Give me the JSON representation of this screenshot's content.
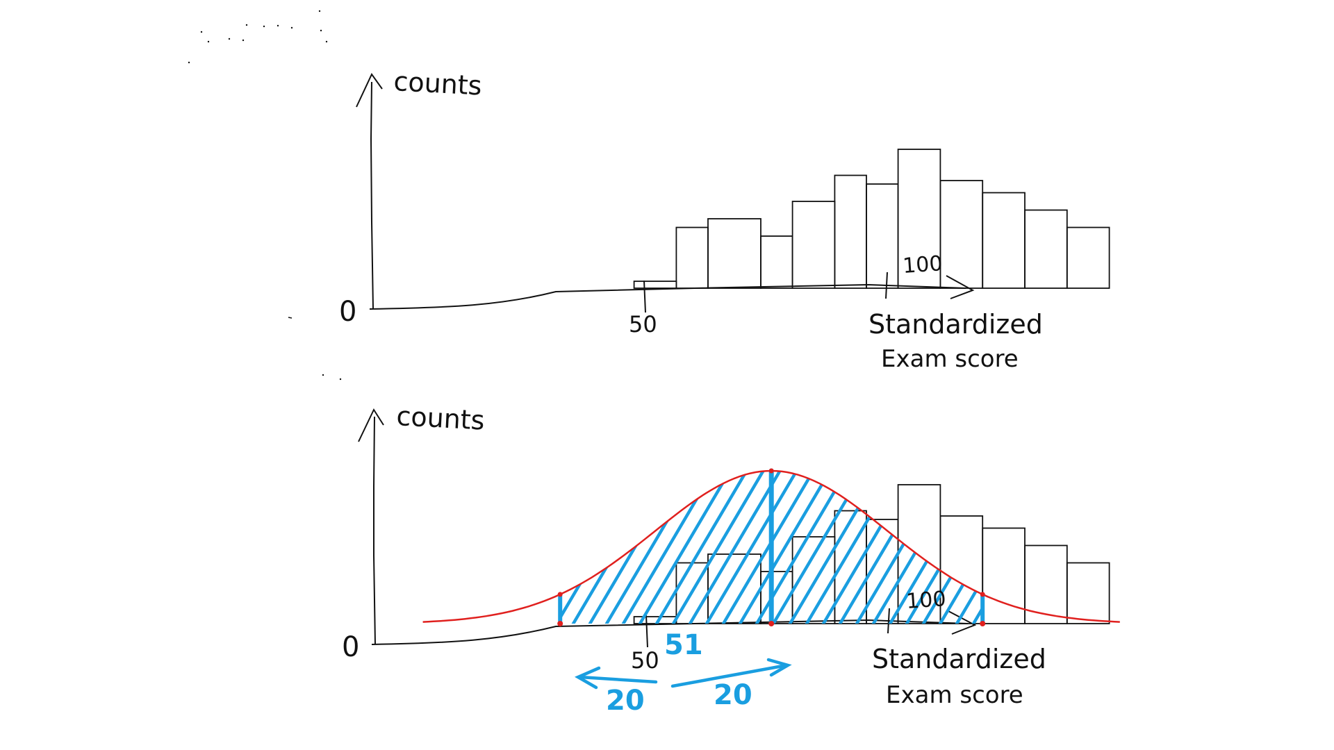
{
  "colors": {
    "ink": "#111111",
    "curve": "#e0201e",
    "highlight": "#1a9ee0",
    "background": "#ffffff"
  },
  "chart_data": [
    {
      "type": "bar",
      "ylabel": "counts",
      "xlabel": "Standardized Exam score",
      "xlabel_lines": [
        "Standardized",
        "Exam score"
      ],
      "origin_label": "0",
      "x_ticks": [
        {
          "x": 50,
          "label": "50"
        },
        {
          "x": 100,
          "label": "100"
        }
      ],
      "xlim": [
        0,
        100
      ],
      "bars": [
        {
          "x0": 38,
          "x1": 42,
          "y": 4
        },
        {
          "x0": 42,
          "x1": 45,
          "y": 35
        },
        {
          "x0": 45,
          "x1": 50,
          "y": 40
        },
        {
          "x0": 50,
          "x1": 53,
          "y": 30
        },
        {
          "x0": 53,
          "x1": 57,
          "y": 50
        },
        {
          "x0": 57,
          "x1": 60,
          "y": 65
        },
        {
          "x0": 60,
          "x1": 63,
          "y": 60
        },
        {
          "x0": 63,
          "x1": 67,
          "y": 80
        },
        {
          "x0": 67,
          "x1": 71,
          "y": 62
        },
        {
          "x0": 71,
          "x1": 75,
          "y": 55
        },
        {
          "x0": 75,
          "x1": 79,
          "y": 45
        },
        {
          "x0": 79,
          "x1": 83,
          "y": 35
        }
      ]
    },
    {
      "type": "bar",
      "ylabel": "counts",
      "xlabel": "Standardized Exam score",
      "xlabel_lines": [
        "Standardized",
        "Exam score"
      ],
      "origin_label": "0",
      "x_ticks": [
        {
          "x": 50,
          "label": "50"
        },
        {
          "x": 100,
          "label": "100"
        }
      ],
      "xlim": [
        0,
        100
      ],
      "bars": [
        {
          "x0": 38,
          "x1": 42,
          "y": 4
        },
        {
          "x0": 42,
          "x1": 45,
          "y": 35
        },
        {
          "x0": 45,
          "x1": 50,
          "y": 40
        },
        {
          "x0": 50,
          "x1": 53,
          "y": 30
        },
        {
          "x0": 53,
          "x1": 57,
          "y": 50
        },
        {
          "x0": 57,
          "x1": 60,
          "y": 65
        },
        {
          "x0": 60,
          "x1": 63,
          "y": 60
        },
        {
          "x0": 63,
          "x1": 67,
          "y": 80
        },
        {
          "x0": 67,
          "x1": 71,
          "y": 62
        },
        {
          "x0": 71,
          "x1": 75,
          "y": 55
        },
        {
          "x0": 75,
          "x1": 79,
          "y": 45
        },
        {
          "x0": 79,
          "x1": 83,
          "y": 35
        }
      ],
      "fitted_curve": {
        "shape": "normal",
        "mean": 51,
        "sd": 11,
        "peak": 88
      },
      "shaded_range": [
        31,
        71
      ],
      "marker_lines": [
        31,
        51,
        71
      ],
      "annotations": {
        "mean_label": "51",
        "left_span_label": "20",
        "right_span_label": "20"
      }
    }
  ]
}
